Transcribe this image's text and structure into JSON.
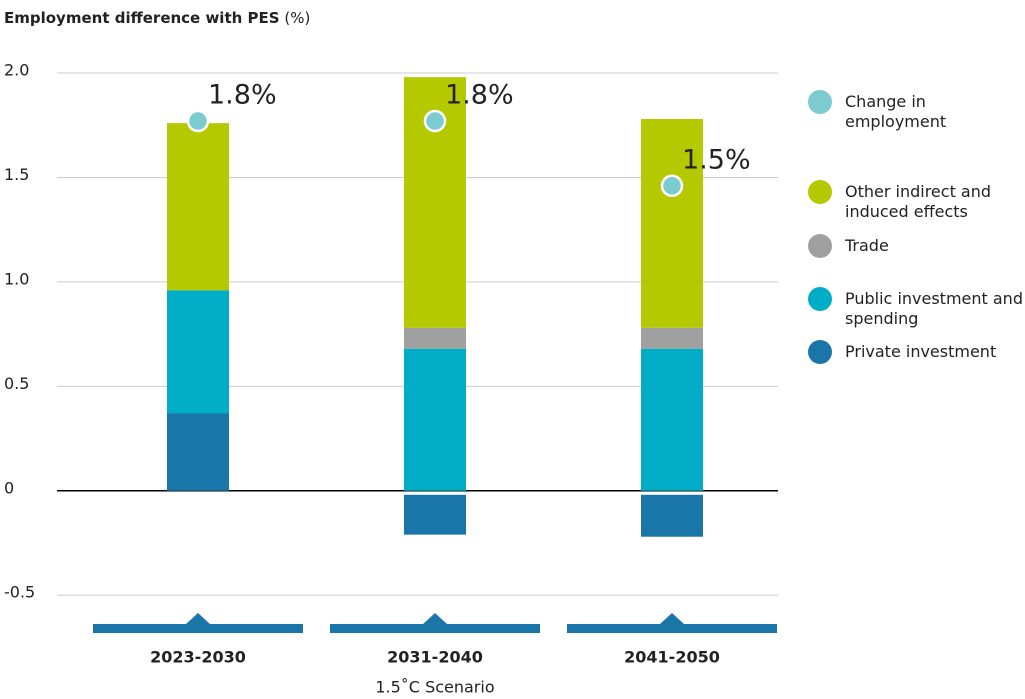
{
  "chart_data": {
    "type": "bar",
    "stacked": true,
    "title": "Employment difference with PES",
    "title_unit": "(%)",
    "x_label": "1.5˚C Scenario",
    "categories": [
      "2023-2030",
      "2031-2040",
      "2041-2050"
    ],
    "ylim": [
      -0.7,
      2.0
    ],
    "yticks": [
      {
        "value": 2,
        "label": "2.0"
      },
      1.5,
      {
        "value": 1,
        "label": "1.0"
      },
      0.5,
      0,
      -0.5
    ],
    "grid": true,
    "series": [
      {
        "name": "Private investment",
        "color": "#1a76a8",
        "values": [
          0.37,
          -0.21,
          -0.22
        ]
      },
      {
        "name": "Public investment and spending",
        "color": "#00adc6",
        "values": [
          0.59,
          0.68,
          0.68
        ]
      },
      {
        "name": "Trade",
        "color": "#a0a0a0",
        "values": [
          null,
          0.1,
          0.1
        ]
      },
      {
        "name": "Other indirect and induced effects",
        "color": "#b5c900",
        "values": [
          0.8,
          1.2,
          1.0
        ]
      }
    ],
    "markers": {
      "name": "Change in employment",
      "color": "#7ccbd1",
      "values": [
        1.77,
        1.77,
        1.46
      ],
      "value_labels": [
        "1.8%",
        "1.8%",
        "1.5%"
      ]
    }
  }
}
